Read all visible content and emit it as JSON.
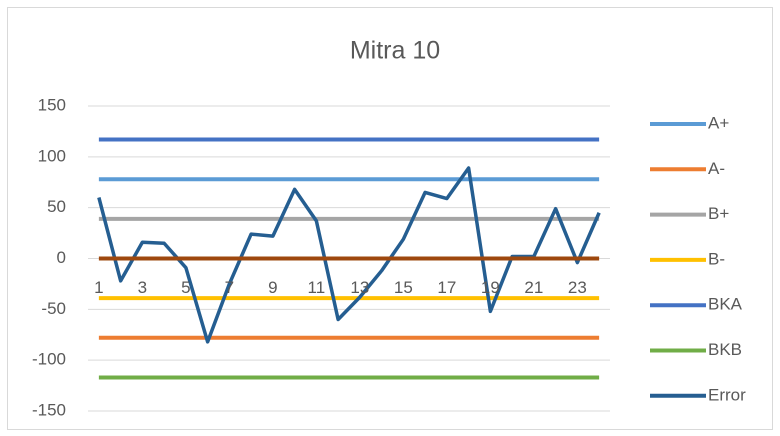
{
  "chart_data": {
    "type": "line",
    "title": "Mitra 10",
    "categories": [
      "1",
      null,
      "3",
      null,
      "5",
      null,
      "7",
      null,
      "9",
      null,
      "11",
      null,
      "13",
      null,
      "15",
      null,
      "17",
      null,
      "19",
      null,
      "21",
      null,
      "23",
      null
    ],
    "ylim": [
      -150,
      150
    ],
    "yticks": [
      -150,
      -100,
      -50,
      0,
      50,
      100,
      150
    ],
    "grid": true,
    "legend": "right",
    "series": [
      {
        "name": "A+",
        "color": "#5b9bd5",
        "values": [
          78,
          78,
          78,
          78,
          78,
          78,
          78,
          78,
          78,
          78,
          78,
          78,
          78,
          78,
          78,
          78,
          78,
          78,
          78,
          78,
          78,
          78,
          78,
          78
        ]
      },
      {
        "name": "A-",
        "color": "#ed7d31",
        "values": [
          -78,
          -78,
          -78,
          -78,
          -78,
          -78,
          -78,
          -78,
          -78,
          -78,
          -78,
          -78,
          -78,
          -78,
          -78,
          -78,
          -78,
          -78,
          -78,
          -78,
          -78,
          -78,
          -78,
          -78
        ]
      },
      {
        "name": "B+",
        "color": "#a5a5a5",
        "values": [
          39,
          39,
          39,
          39,
          39,
          39,
          39,
          39,
          39,
          39,
          39,
          39,
          39,
          39,
          39,
          39,
          39,
          39,
          39,
          39,
          39,
          39,
          39,
          39
        ]
      },
      {
        "name": "B-",
        "color": "#ffc000",
        "values": [
          -39,
          -39,
          -39,
          -39,
          -39,
          -39,
          -39,
          -39,
          -39,
          -39,
          -39,
          -39,
          -39,
          -39,
          -39,
          -39,
          -39,
          -39,
          -39,
          -39,
          -39,
          -39,
          -39,
          -39
        ]
      },
      {
        "name": "BKA",
        "color": "#4472c4",
        "values": [
          117,
          117,
          117,
          117,
          117,
          117,
          117,
          117,
          117,
          117,
          117,
          117,
          117,
          117,
          117,
          117,
          117,
          117,
          117,
          117,
          117,
          117,
          117,
          117
        ]
      },
      {
        "name": "BKB",
        "color": "#70ad47",
        "values": [
          -117,
          -117,
          -117,
          -117,
          -117,
          -117,
          -117,
          -117,
          -117,
          -117,
          -117,
          -117,
          -117,
          -117,
          -117,
          -117,
          -117,
          -117,
          -117,
          -117,
          -117,
          -117,
          -117,
          -117
        ]
      },
      {
        "name": "Error",
        "color": "#255e91",
        "values": [
          60,
          -22,
          16,
          15,
          -9,
          -82,
          -25,
          24,
          22,
          68,
          37,
          -60,
          -38,
          -12,
          19,
          65,
          59,
          89,
          -52,
          2,
          2,
          49,
          -4,
          45
        ]
      },
      {
        "color": "#9e480e",
        "values": [
          0,
          0,
          0,
          0,
          0,
          0,
          0,
          0,
          0,
          0,
          0,
          0,
          0,
          0,
          0,
          0,
          0,
          0,
          0,
          0,
          0,
          0,
          0,
          0
        ]
      }
    ]
  }
}
